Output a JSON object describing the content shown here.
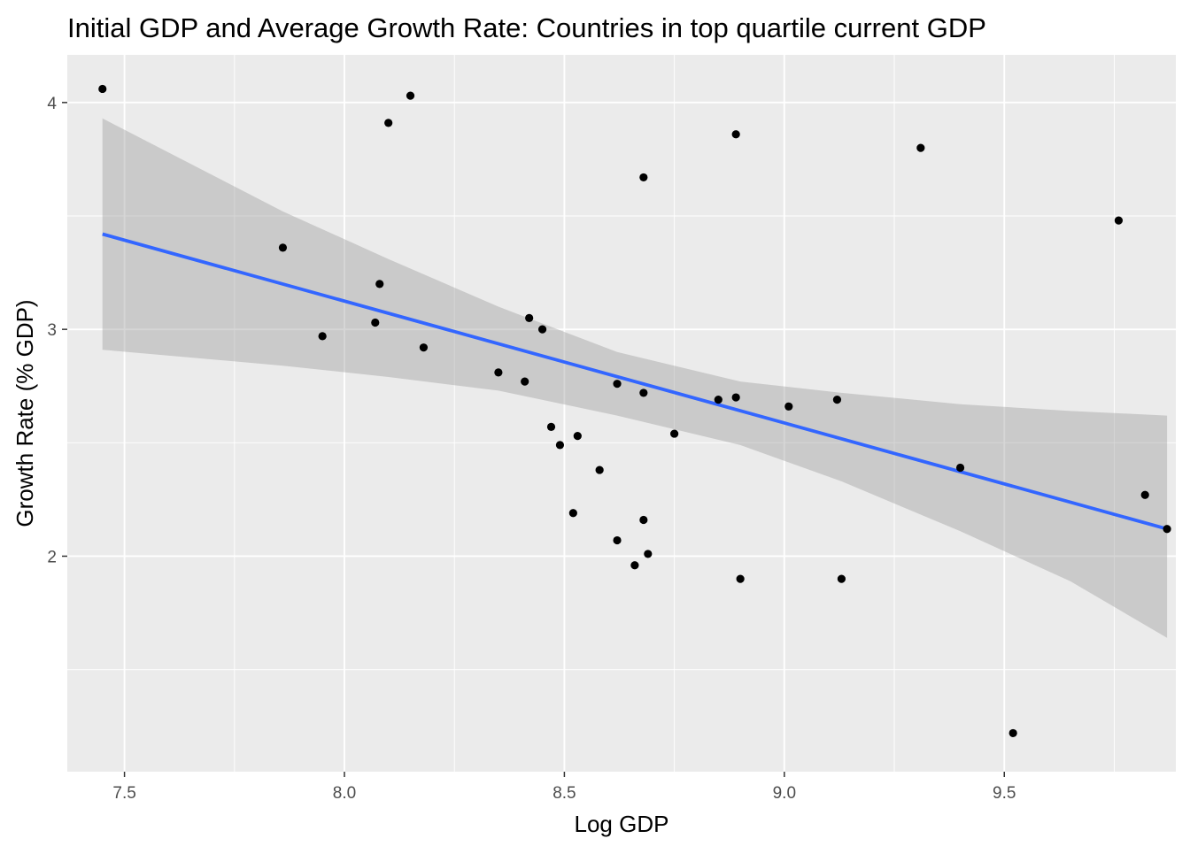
{
  "chart_data": {
    "type": "scatter",
    "title": "Initial GDP and Average Growth Rate: Countries in top quartile current GDP",
    "xlabel": "Log GDP",
    "ylabel": "Growth Rate (% GDP)",
    "xlim": [
      7.37,
      9.89
    ],
    "ylim": [
      1.05,
      4.21
    ],
    "x_ticks": [
      7.5,
      8.0,
      8.5,
      9.0,
      9.5
    ],
    "x_tick_labels": [
      "7.5",
      "8.0",
      "8.5",
      "9.0",
      "9.5"
    ],
    "y_ticks": [
      2,
      3,
      4
    ],
    "y_tick_labels": [
      "2",
      "3",
      "4"
    ],
    "grid": true,
    "legend": "none",
    "colors": {
      "panel_background": "#EBEBEB",
      "grid": "#FFFFFF",
      "points": "#000000",
      "fit_line": "#3366FF",
      "confidence_band": "#999999"
    },
    "points": [
      {
        "x": 7.45,
        "y": 4.06
      },
      {
        "x": 8.15,
        "y": 4.03
      },
      {
        "x": 8.1,
        "y": 3.91
      },
      {
        "x": 8.89,
        "y": 3.86
      },
      {
        "x": 9.31,
        "y": 3.8
      },
      {
        "x": 8.68,
        "y": 3.67
      },
      {
        "x": 9.76,
        "y": 3.48
      },
      {
        "x": 7.86,
        "y": 3.36
      },
      {
        "x": 8.08,
        "y": 3.2
      },
      {
        "x": 8.42,
        "y": 3.05
      },
      {
        "x": 8.07,
        "y": 3.03
      },
      {
        "x": 8.45,
        "y": 3.0
      },
      {
        "x": 7.95,
        "y": 2.97
      },
      {
        "x": 8.18,
        "y": 2.92
      },
      {
        "x": 8.35,
        "y": 2.81
      },
      {
        "x": 8.41,
        "y": 2.77
      },
      {
        "x": 8.62,
        "y": 2.76
      },
      {
        "x": 8.68,
        "y": 2.72
      },
      {
        "x": 8.85,
        "y": 2.69
      },
      {
        "x": 8.89,
        "y": 2.7
      },
      {
        "x": 9.12,
        "y": 2.69
      },
      {
        "x": 9.01,
        "y": 2.66
      },
      {
        "x": 8.47,
        "y": 2.57
      },
      {
        "x": 8.75,
        "y": 2.54
      },
      {
        "x": 8.53,
        "y": 2.53
      },
      {
        "x": 8.49,
        "y": 2.49
      },
      {
        "x": 9.4,
        "y": 2.39
      },
      {
        "x": 8.58,
        "y": 2.38
      },
      {
        "x": 9.82,
        "y": 2.27
      },
      {
        "x": 8.52,
        "y": 2.19
      },
      {
        "x": 8.68,
        "y": 2.16
      },
      {
        "x": 9.87,
        "y": 2.12
      },
      {
        "x": 8.62,
        "y": 2.07
      },
      {
        "x": 8.69,
        "y": 2.01
      },
      {
        "x": 8.66,
        "y": 1.96
      },
      {
        "x": 8.9,
        "y": 1.9
      },
      {
        "x": 9.13,
        "y": 1.9
      },
      {
        "x": 9.52,
        "y": 1.22
      }
    ],
    "fit_line": {
      "x": [
        7.45,
        9.87
      ],
      "y": [
        3.42,
        2.12
      ]
    },
    "confidence_band": {
      "x": [
        7.45,
        7.86,
        8.1,
        8.35,
        8.62,
        8.9,
        9.13,
        9.4,
        9.65,
        9.87
      ],
      "upper": [
        3.93,
        3.52,
        3.31,
        3.1,
        2.9,
        2.77,
        2.72,
        2.67,
        2.64,
        2.62
      ],
      "lower": [
        2.91,
        2.84,
        2.79,
        2.73,
        2.62,
        2.49,
        2.33,
        2.11,
        1.89,
        1.64
      ]
    }
  }
}
